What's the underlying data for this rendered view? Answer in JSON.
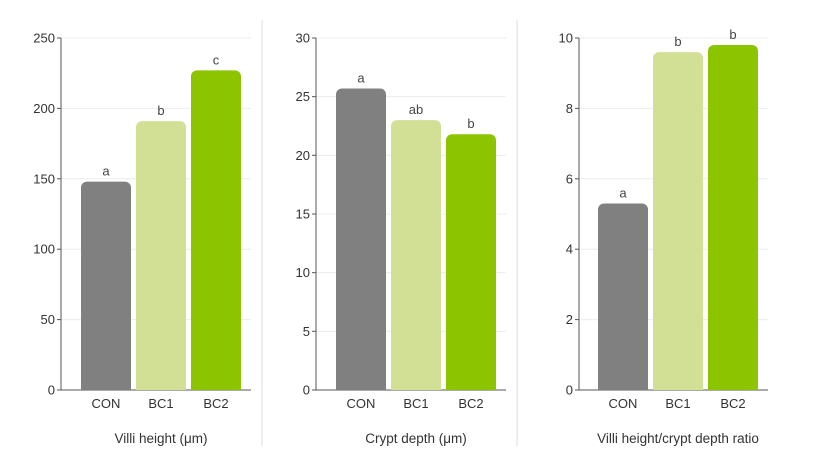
{
  "chart_data": [
    {
      "type": "bar",
      "categories": [
        "CON",
        "BC1",
        "BC2"
      ],
      "values": [
        148,
        191,
        227
      ],
      "labels": [
        "a",
        "b",
        "c"
      ],
      "xlabel": "Villi height (μm)",
      "ylim": [
        0,
        250
      ],
      "yticks": [
        0,
        50,
        100,
        150,
        200,
        250
      ],
      "colors": [
        "#808080",
        "#d2e096",
        "#8cc500"
      ],
      "grid": true
    },
    {
      "type": "bar",
      "categories": [
        "CON",
        "BC1",
        "BC2"
      ],
      "values": [
        25.7,
        23.0,
        21.8
      ],
      "labels": [
        "a",
        "ab",
        "b"
      ],
      "xlabel": "Crypt depth (μm)",
      "ylim": [
        0,
        30
      ],
      "yticks": [
        0,
        5,
        10,
        15,
        20,
        25,
        30
      ],
      "colors": [
        "#808080",
        "#d2e096",
        "#8cc500"
      ],
      "grid": true
    },
    {
      "type": "bar",
      "categories": [
        "CON",
        "BC1",
        "BC2"
      ],
      "values": [
        5.3,
        9.6,
        9.8
      ],
      "labels": [
        "a",
        "b",
        "b"
      ],
      "xlabel": "Villi height/crypt depth ratio",
      "ylim": [
        0,
        10
      ],
      "yticks": [
        0,
        2,
        4,
        6,
        8,
        10
      ],
      "colors": [
        "#808080",
        "#d2e096",
        "#8cc500"
      ],
      "grid": true
    }
  ]
}
